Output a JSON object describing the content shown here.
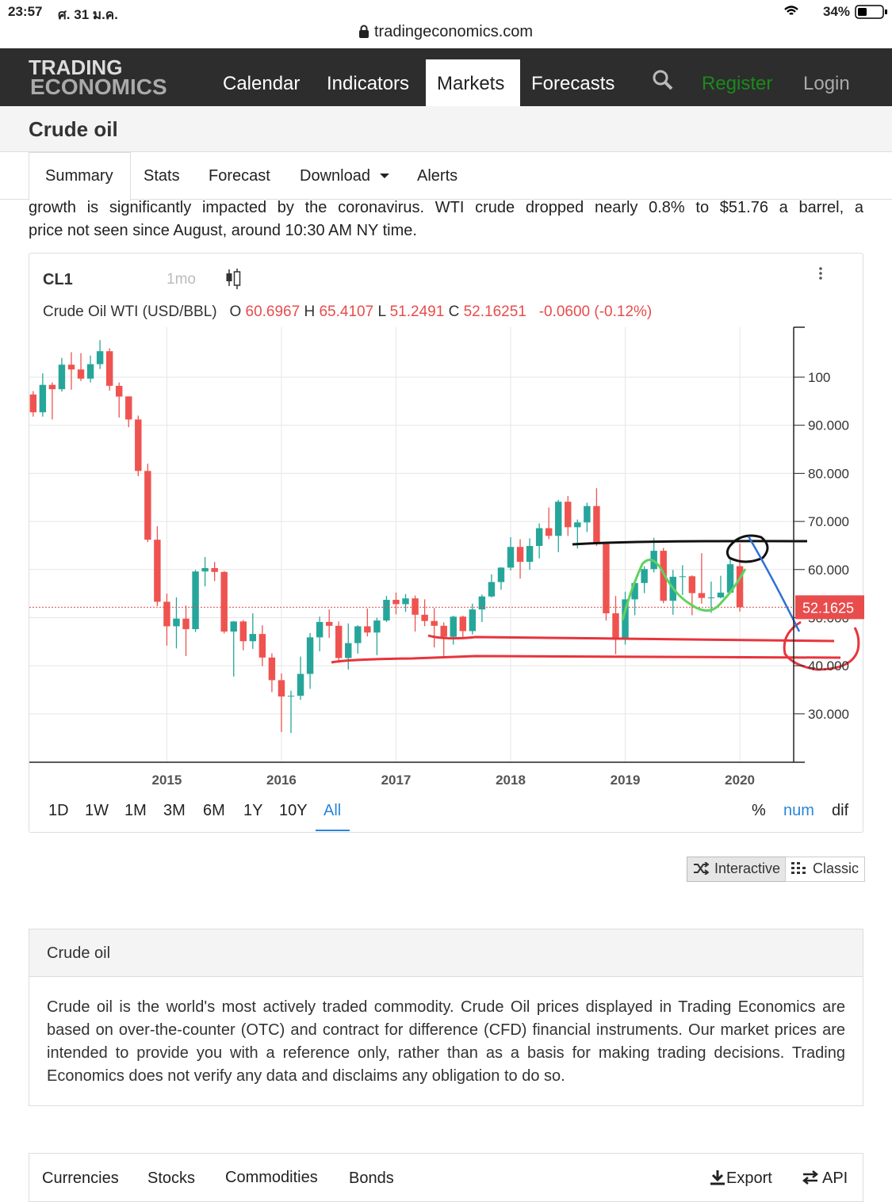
{
  "status_bar": {
    "time": "23:57",
    "date": "ศ. 31 ม.ค.",
    "battery": "34%"
  },
  "url": "tradingeconomics.com",
  "nav": {
    "logo_line1": "TRADING",
    "logo_line2": "ECONOMICS",
    "links": [
      "Calendar",
      "Indicators",
      "Markets",
      "Forecasts"
    ],
    "register": "Register",
    "login": "Login"
  },
  "page_title": "Crude oil",
  "tabs": [
    "Summary",
    "Stats",
    "Forecast",
    "Download",
    "Alerts"
  ],
  "intro_text": [
    "growth is significantly impacted by the coronavirus. WTI crude dropped nearly 0.8% to $51.76 a barrel, a",
    "price not seen since August, around 10:30 AM NY time."
  ],
  "chart_header": {
    "symbol": "CL1",
    "interval": "1mo",
    "name": "Crude Oil WTI (USD/BBL)",
    "o": "O",
    "h": "H",
    "l": "L",
    "c": "C",
    "change": "-0.0600 (-0.12%)"
  },
  "chart_data": {
    "type": "candlestick",
    "x": [
      "2013-11",
      "2013-12",
      "2014-01",
      "2014-02",
      "2014-03",
      "2014-04",
      "2014-05",
      "2014-06",
      "2014-07",
      "2014-08",
      "2014-09",
      "2014-10",
      "2014-11",
      "2014-12",
      "2015-01",
      "2015-02",
      "2015-03",
      "2015-04",
      "2015-05",
      "2015-06",
      "2015-07",
      "2015-08",
      "2015-09",
      "2015-10",
      "2015-11",
      "2015-12",
      "2016-01",
      "2016-02",
      "2016-03",
      "2016-04",
      "2016-05",
      "2016-06",
      "2016-07",
      "2016-08",
      "2016-09",
      "2016-10",
      "2016-11",
      "2016-12",
      "2017-01",
      "2017-02",
      "2017-03",
      "2017-04",
      "2017-05",
      "2017-06",
      "2017-07",
      "2017-08",
      "2017-09",
      "2017-10",
      "2017-11",
      "2017-12",
      "2018-01",
      "2018-02",
      "2018-03",
      "2018-04",
      "2018-05",
      "2018-06",
      "2018-07",
      "2018-08",
      "2018-09",
      "2018-10",
      "2018-11",
      "2018-12",
      "2019-01",
      "2019-02",
      "2019-03",
      "2019-04",
      "2019-05",
      "2019-06",
      "2019-07",
      "2019-08",
      "2019-09",
      "2019-10",
      "2019-11",
      "2019-12",
      "2020-01"
    ],
    "open": [
      96.4,
      92.7,
      98.4,
      97.5,
      102.6,
      101.6,
      99.7,
      102.7,
      105.4,
      98.2,
      96,
      91.2,
      80.5,
      66.2,
      53.3,
      48.2,
      49.8,
      47.6,
      59.6,
      60.3,
      59.5,
      47.1,
      49.2,
      45.1,
      46.6,
      41.7,
      37,
      33.6,
      33.75,
      38.3,
      45.9,
      49.1,
      48.3,
      41.6,
      44.7,
      48.2,
      46.9,
      49.4,
      53.7,
      52.8,
      54,
      50.6,
      49.3,
      48.3,
      46,
      50.2,
      47.2,
      51.7,
      54.4,
      57.4,
      60.4,
      64.7,
      61.6,
      64.9,
      68.6,
      67,
      74.1,
      68.8,
      69.8,
      73.2,
      65.3,
      50.9,
      45.4,
      53.8,
      57.2,
      60.1,
      63.9,
      53.5,
      58.5,
      58.6,
      55.1,
      54.1,
      54.2,
      55.2,
      60.6967
    ],
    "high": [
      97.1,
      100.8,
      98.9,
      104,
      105.2,
      104.99,
      104.5,
      107.7,
      106,
      98.9,
      96,
      92,
      82,
      69,
      55,
      54.2,
      52.5,
      59.9,
      62.6,
      61.6,
      59.7,
      49.3,
      49.5,
      50.9,
      48.4,
      42.6,
      38.4,
      34.8,
      41.9,
      46.8,
      50.2,
      51.7,
      49.2,
      48.8,
      48.4,
      51.9,
      50,
      54.5,
      55.2,
      54.9,
      54.6,
      53.8,
      52,
      49,
      50.4,
      50.4,
      52.9,
      54.8,
      59,
      60.5,
      66.7,
      66.3,
      66.5,
      69.6,
      72.9,
      74.5,
      75.3,
      70.4,
      73.9,
      76.9,
      65.4,
      54.5,
      55.4,
      57.8,
      60.7,
      66.6,
      64.5,
      59.9,
      60.9,
      58.8,
      63.4,
      57.5,
      58.7,
      62.3,
      65.4107
    ],
    "low": [
      91.8,
      91.8,
      91.2,
      97,
      97.4,
      99.2,
      98.9,
      101.7,
      97.2,
      91.6,
      89.6,
      79.4,
      65.7,
      52.4,
      44.2,
      43.6,
      42,
      47,
      56.5,
      57.6,
      46.7,
      37.75,
      43.2,
      43.5,
      39.9,
      34.5,
      26.2,
      26,
      32.9,
      35.2,
      43,
      45.8,
      40.6,
      39.2,
      42.5,
      46.1,
      42.2,
      49.1,
      50.7,
      51.2,
      47.1,
      48.2,
      43.8,
      42,
      44.4,
      45.6,
      46.5,
      49.1,
      54.2,
      55.8,
      59.8,
      58.1,
      59.95,
      62.3,
      66.3,
      63.6,
      67,
      64.4,
      67.8,
      64.9,
      49.4,
      42.4,
      44.4,
      50.5,
      55.1,
      59.4,
      53,
      50.6,
      54.7,
      50.5,
      52.9,
      50.99,
      54,
      55,
      51.2491
    ],
    "close": [
      92.7,
      98.4,
      97.5,
      102.6,
      101.6,
      99.7,
      102.7,
      105.4,
      98.2,
      95.96,
      91.2,
      80.5,
      66.2,
      53.3,
      48.2,
      49.8,
      47.6,
      59.6,
      60.3,
      59.5,
      47.1,
      49.2,
      45.1,
      46.6,
      41.7,
      37,
      33.6,
      33.75,
      38.3,
      45.9,
      49.1,
      48.3,
      41.6,
      44.7,
      48.2,
      46.9,
      49.4,
      53.7,
      52.8,
      54,
      50.6,
      49.3,
      48.3,
      46,
      50.2,
      47.2,
      51.7,
      54.4,
      57.4,
      60.4,
      64.7,
      61.6,
      64.9,
      68.6,
      67,
      74.1,
      68.8,
      69.8,
      73.2,
      65.3,
      50.9,
      45.4,
      53.8,
      57.2,
      60.1,
      63.9,
      53.5,
      58.5,
      58.6,
      55.1,
      54.1,
      54.2,
      55.2,
      61.1,
      52.16251
    ],
    "up_color": "#26a69a",
    "down_color": "#ef5350",
    "xlim": [
      2013.8,
      2020.47
    ],
    "xticks": [
      2015,
      2016,
      2017,
      2018,
      2019,
      2020
    ],
    "ylim": [
      19.93,
      110.38
    ],
    "yticks": [
      {
        "value": 30,
        "label": "30.000"
      },
      {
        "value": 40,
        "label": "40.000"
      },
      {
        "value": 50,
        "label": "50.000"
      },
      {
        "value": 60,
        "label": "60.000"
      },
      {
        "value": 70,
        "label": "70.000"
      },
      {
        "value": 80,
        "label": "80.000"
      },
      {
        "value": 90,
        "label": "90.000"
      },
      100
    ],
    "grid": true,
    "last_price": 52.1625,
    "last_price_color": "#e84c4c"
  },
  "range_buttons": [
    "1D",
    "1W",
    "1M",
    "3M",
    "6M",
    "1Y",
    "10Y",
    "All"
  ],
  "mode_buttons": [
    "%",
    "num",
    "dif"
  ],
  "view_buttons": [
    "Interactive",
    "Classic"
  ],
  "description": {
    "title": "Crude oil",
    "text": "Crude oil is the world's most actively traded commodity. Crude Oil prices displayed in Trading Economics are based on over-the-counter (OTC) and contract for difference (CFD) financial instruments. Our market prices are intended to provide you with a reference only, rather than as a basis for making trading decisions. Trading Economics does not verify any data and disclaims any obligation to do so."
  },
  "bottom_tabs": [
    "Currencies",
    "Stocks",
    "Commodities",
    "Bonds"
  ],
  "bottom_actions": [
    "Export",
    "API"
  ]
}
